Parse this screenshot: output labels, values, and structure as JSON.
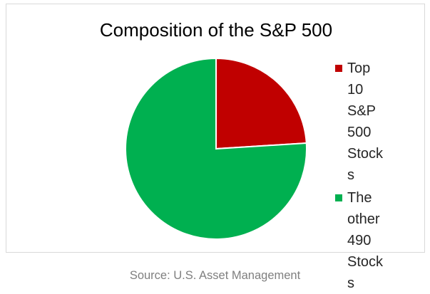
{
  "chart_data": {
    "type": "pie",
    "title": "Composition of the S&P 500",
    "slices": [
      {
        "label": "Top 10 S&P 500 Stocks",
        "value": 24,
        "color": "#c00000"
      },
      {
        "label": "The other 490 Stocks",
        "value": 76,
        "color": "#00b050"
      }
    ],
    "legend_position": "right"
  },
  "source": "Source: U.S. Asset Management"
}
